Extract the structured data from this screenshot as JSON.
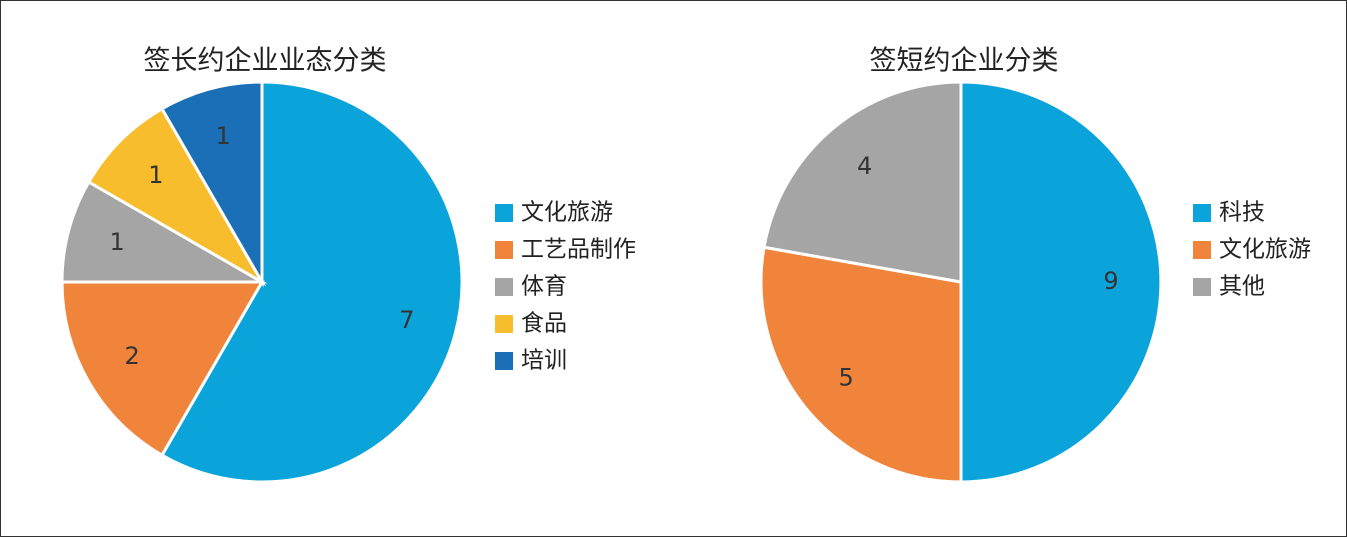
{
  "chart_data": [
    {
      "type": "pie",
      "title": "签长约企业业态分类",
      "categories": [
        "文化旅游",
        "工艺品制作",
        "体育",
        "食品",
        "培训"
      ],
      "values": [
        7,
        2,
        1,
        1,
        1
      ],
      "colors": [
        "#0aa3da",
        "#f0843a",
        "#a5a5a5",
        "#f8bd2c",
        "#1a6fb7"
      ]
    },
    {
      "type": "pie",
      "title": "签短约企业分类",
      "categories": [
        "科技",
        "文化旅游",
        "其他"
      ],
      "values": [
        9,
        5,
        4
      ],
      "colors": [
        "#0aa3da",
        "#f0843a",
        "#a5a5a5"
      ]
    }
  ]
}
